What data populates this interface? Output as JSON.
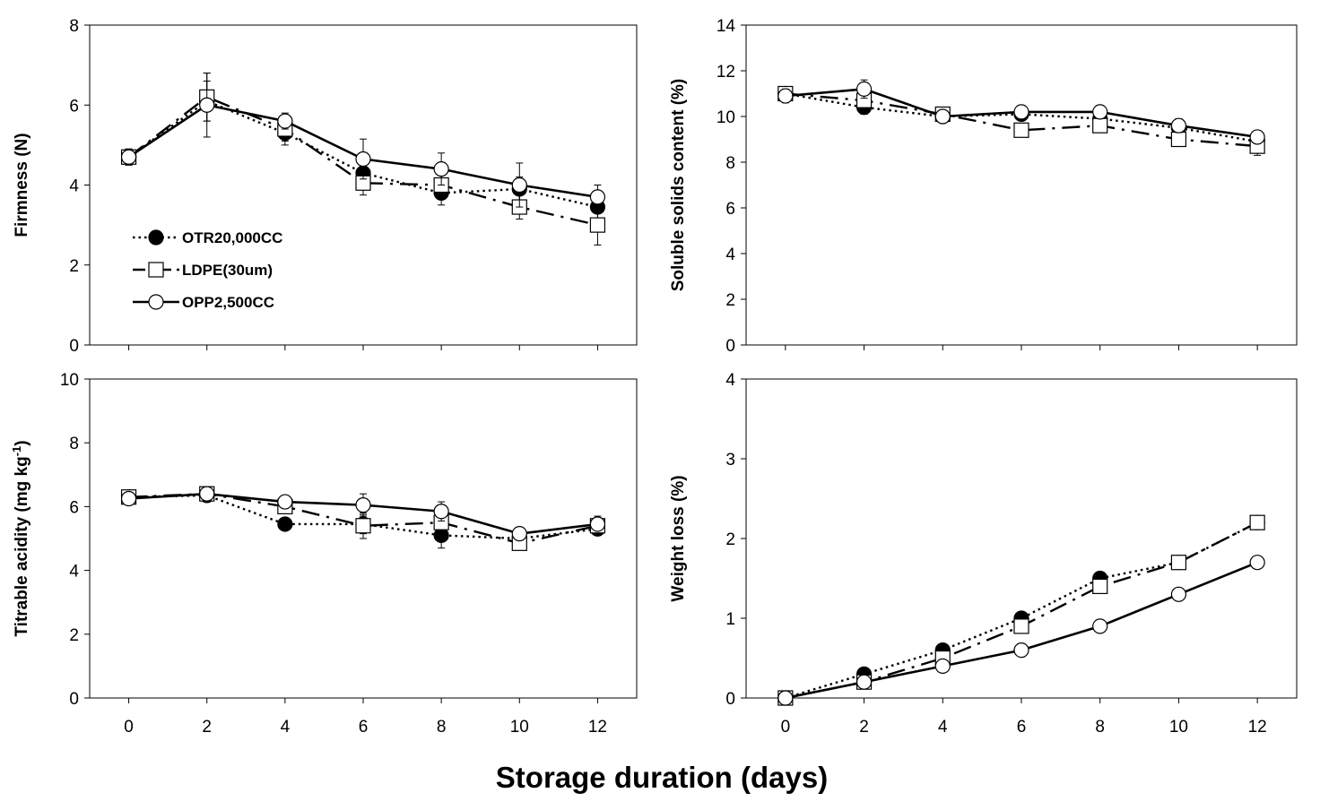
{
  "figure": {
    "xlabel": "Storage duration (days)"
  },
  "legend": [
    {
      "name": "OTR20,000CC",
      "marker": "filled-circle",
      "dash": "dotted"
    },
    {
      "name": "LDPE(30um)",
      "marker": "open-square",
      "dash": "dash-dot"
    },
    {
      "name": "OPP2,500CC",
      "marker": "open-circle",
      "dash": "solid"
    }
  ],
  "colors": {
    "line": "#000000",
    "filled": "#000000",
    "open": "#ffffff"
  },
  "chart_data": [
    {
      "id": "firmness",
      "type": "line",
      "ylabel": "Firmness (N)",
      "x": [
        0,
        2,
        4,
        6,
        8,
        10,
        12
      ],
      "xticks": [
        "0",
        "2",
        "4",
        "6",
        "8",
        "10",
        "12"
      ],
      "ylim": [
        0,
        8
      ],
      "yticks": [
        "0",
        "2",
        "4",
        "6",
        "8"
      ],
      "show_x_tick_labels": false,
      "legend_placement": "lower-left",
      "series": [
        {
          "name": "OTR20,000CC",
          "values": [
            4.7,
            6.1,
            5.3,
            4.3,
            3.8,
            3.9,
            3.45
          ],
          "errors": [
            0.2,
            0.5,
            0.3,
            0.4,
            0.3,
            0.3,
            0.3
          ]
        },
        {
          "name": "LDPE(30um)",
          "values": [
            4.7,
            6.2,
            5.4,
            4.05,
            4.0,
            3.45,
            3.0
          ],
          "errors": [
            0.2,
            0.6,
            0.3,
            0.3,
            0.3,
            0.3,
            0.5
          ]
        },
        {
          "name": "OPP2,500CC",
          "values": [
            4.7,
            6.0,
            5.6,
            4.65,
            4.4,
            4.0,
            3.7
          ],
          "errors": [
            0.2,
            0.8,
            0.2,
            0.5,
            0.4,
            0.55,
            0.3
          ]
        }
      ]
    },
    {
      "id": "soluble-solids",
      "type": "line",
      "ylabel": "Soluble solids content (%)",
      "x": [
        0,
        2,
        4,
        6,
        8,
        10,
        12
      ],
      "xticks": [
        "0",
        "2",
        "4",
        "6",
        "8",
        "10",
        "12"
      ],
      "ylim": [
        0,
        14
      ],
      "yticks": [
        "0",
        "2",
        "4",
        "6",
        "8",
        "10",
        "12",
        "14"
      ],
      "show_x_tick_labels": false,
      "series": [
        {
          "name": "OTR20,000CC",
          "values": [
            11.0,
            10.4,
            10.0,
            10.1,
            9.9,
            9.5,
            8.9
          ],
          "errors": [
            0.3,
            0.3,
            0.2,
            0.2,
            0.2,
            0.2,
            0.2
          ]
        },
        {
          "name": "LDPE(30um)",
          "values": [
            11.0,
            10.7,
            10.1,
            9.4,
            9.6,
            9.0,
            8.7
          ],
          "errors": [
            0.3,
            0.3,
            0.2,
            0.3,
            0.2,
            0.3,
            0.4
          ]
        },
        {
          "name": "OPP2,500CC",
          "values": [
            10.9,
            11.2,
            10.0,
            10.2,
            10.2,
            9.6,
            9.1
          ],
          "errors": [
            0.3,
            0.4,
            0.2,
            0.2,
            0.2,
            0.3,
            0.2
          ]
        }
      ]
    },
    {
      "id": "titrable-acidity",
      "type": "line",
      "ylabel": "Titrable acidity (mg kg",
      "ylabel_sup": "-1",
      "ylabel_tail": ")",
      "x": [
        0,
        2,
        4,
        6,
        8,
        10,
        12
      ],
      "xticks": [
        "0",
        "2",
        "4",
        "6",
        "8",
        "10",
        "12"
      ],
      "ylim": [
        0,
        10
      ],
      "yticks": [
        "0",
        "2",
        "4",
        "6",
        "8",
        "10"
      ],
      "show_x_tick_labels": true,
      "series": [
        {
          "name": "OTR20,000CC",
          "values": [
            6.3,
            6.35,
            5.45,
            5.45,
            5.1,
            5.0,
            5.3
          ],
          "errors": [
            0.1,
            0.2,
            0.15,
            0.3,
            0.4,
            0.3,
            0.2
          ]
        },
        {
          "name": "LDPE(30um)",
          "values": [
            6.3,
            6.4,
            6.0,
            5.4,
            5.5,
            4.85,
            5.4
          ],
          "errors": [
            0.1,
            0.2,
            0.2,
            0.4,
            0.3,
            0.2,
            0.3
          ]
        },
        {
          "name": "OPP2,500CC",
          "values": [
            6.25,
            6.4,
            6.15,
            6.05,
            5.85,
            5.15,
            5.45
          ],
          "errors": [
            0.1,
            0.2,
            0.2,
            0.35,
            0.3,
            0.15,
            0.2
          ]
        }
      ]
    },
    {
      "id": "weight-loss",
      "type": "line",
      "ylabel": "Weight loss (%)",
      "x": [
        0,
        2,
        4,
        6,
        8,
        10,
        12
      ],
      "xticks": [
        "0",
        "2",
        "4",
        "6",
        "8",
        "10",
        "12"
      ],
      "ylim": [
        0,
        4
      ],
      "yticks": [
        "0",
        "1",
        "2",
        "3",
        "4"
      ],
      "show_x_tick_labels": true,
      "series": [
        {
          "name": "OTR20,000CC",
          "values": [
            0.0,
            0.3,
            0.6,
            1.0,
            1.5,
            1.7,
            2.2
          ],
          "errors": [
            0,
            0,
            0,
            0,
            0,
            0,
            0
          ]
        },
        {
          "name": "LDPE(30um)",
          "values": [
            0.0,
            0.2,
            0.5,
            0.9,
            1.4,
            1.7,
            2.2
          ],
          "errors": [
            0,
            0,
            0,
            0,
            0,
            0,
            0
          ]
        },
        {
          "name": "OPP2,500CC",
          "values": [
            0.0,
            0.2,
            0.4,
            0.6,
            0.9,
            1.3,
            1.7
          ],
          "errors": [
            0,
            0,
            0,
            0,
            0,
            0,
            0
          ]
        }
      ]
    }
  ]
}
